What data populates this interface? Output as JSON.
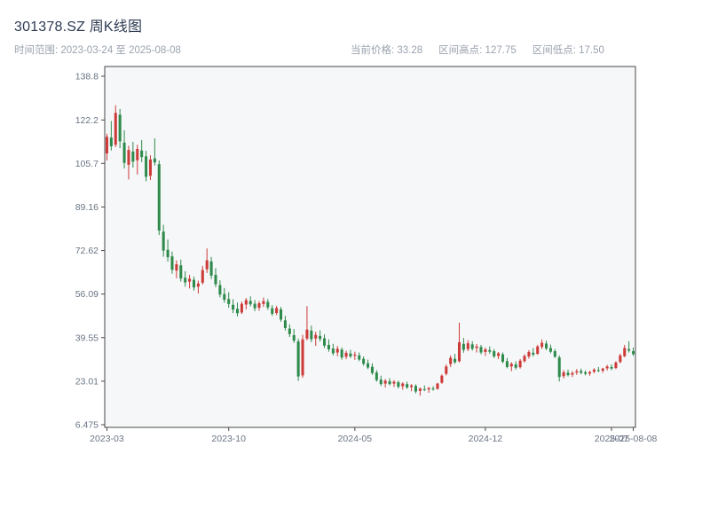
{
  "header": {
    "title": "301378.SZ 周K线图",
    "time_range": "时间范围: 2023-03-24 至 2025-08-08",
    "current_price": "当前价格: 33.28",
    "range_high": "区间高点: 127.75",
    "range_low": "区间低点: 17.50"
  },
  "chart_data": {
    "type": "candlestick",
    "symbol": "301378.SZ",
    "interval": "weekly",
    "title": "301378.SZ 周K线图",
    "current_price": 33.28,
    "range_high": 127.75,
    "range_low": 17.5,
    "date_start": "2023-03-24",
    "date_end": "2025-08-08",
    "ylim": [
      6.475,
      138.8
    ],
    "grid": false,
    "legend": "none",
    "up_color": "#cc3b38",
    "down_color": "#2e8b4c",
    "border_color": "#474747",
    "plot_bg": "#f6f7f9",
    "y_ticks": [
      {
        "label": "6.475",
        "value": 6.475
      },
      {
        "label": "23.01",
        "value": 23.01
      },
      {
        "label": "39.55",
        "value": 39.55
      },
      {
        "label": "56.09",
        "value": 56.09
      },
      {
        "label": "72.62",
        "value": 72.62
      },
      {
        "label": "89.16",
        "value": 89.16
      },
      {
        "label": "105.7",
        "value": 105.7
      },
      {
        "label": "122.2",
        "value": 122.2
      },
      {
        "label": "138.8",
        "value": 138.8
      }
    ],
    "x_ticks": [
      {
        "label": "2023-03",
        "index": 0
      },
      {
        "label": "2023-10",
        "index": 28
      },
      {
        "label": "2024-05",
        "index": 57
      },
      {
        "label": "2024-12",
        "index": 87
      },
      {
        "label": "2025-07",
        "index": 116
      },
      {
        "label": "2025-08-08",
        "index": 121
      }
    ],
    "candles": [
      [
        "2023-03-24",
        109.5,
        117.0,
        106.8,
        115.8
      ],
      [
        "2023-03-31",
        115.5,
        121.8,
        110.6,
        112.2
      ],
      [
        "2023-04-07",
        112.8,
        127.75,
        111.9,
        124.9
      ],
      [
        "2023-04-14",
        124.2,
        126.4,
        111.5,
        114.1
      ],
      [
        "2023-04-21",
        113.6,
        118.3,
        103.8,
        105.9
      ],
      [
        "2023-04-28",
        105.2,
        112.4,
        99.6,
        110.8
      ],
      [
        "2023-05-05",
        110.2,
        113.9,
        104.1,
        106.4
      ],
      [
        "2023-05-12",
        106.9,
        112.8,
        101.5,
        111.2
      ],
      [
        "2023-05-19",
        110.6,
        114.6,
        106.2,
        108.1
      ],
      [
        "2023-05-26",
        108.4,
        110.5,
        98.9,
        100.6
      ],
      [
        "2023-06-02",
        101.0,
        108.8,
        99.4,
        107.2
      ],
      [
        "2023-06-09",
        107.6,
        115.2,
        104.9,
        106.1
      ],
      [
        "2023-06-16",
        105.4,
        106.8,
        78.5,
        80.2
      ],
      [
        "2023-06-23",
        79.8,
        82.4,
        70.3,
        72.6
      ],
      [
        "2023-06-30",
        72.9,
        76.8,
        68.4,
        70.1
      ],
      [
        "2023-07-07",
        70.4,
        72.2,
        63.8,
        65.3
      ],
      [
        "2023-07-14",
        65.0,
        68.9,
        62.1,
        67.4
      ],
      [
        "2023-07-21",
        67.0,
        69.2,
        60.8,
        62.0
      ],
      [
        "2023-07-28",
        62.3,
        64.8,
        58.9,
        60.5
      ],
      [
        "2023-08-04",
        60.8,
        63.4,
        58.2,
        61.9
      ],
      [
        "2023-08-11",
        61.5,
        62.7,
        57.4,
        58.6
      ],
      [
        "2023-08-18",
        58.9,
        61.2,
        56.3,
        60.1
      ],
      [
        "2023-08-25",
        60.4,
        66.8,
        59.7,
        65.2
      ],
      [
        "2023-09-01",
        65.5,
        73.4,
        64.1,
        68.9
      ],
      [
        "2023-09-08",
        68.5,
        70.2,
        61.8,
        63.1
      ],
      [
        "2023-09-15",
        63.4,
        65.9,
        58.7,
        59.8
      ],
      [
        "2023-09-22",
        59.5,
        61.3,
        54.8,
        55.9
      ],
      [
        "2023-09-28",
        56.1,
        58.4,
        52.8,
        53.9
      ],
      [
        "2023-10-13",
        54.2,
        56.8,
        50.9,
        52.3
      ],
      [
        "2023-10-20",
        52.0,
        54.1,
        48.9,
        50.2
      ],
      [
        "2023-10-27",
        50.5,
        52.9,
        47.6,
        48.8
      ],
      [
        "2023-11-03",
        49.1,
        53.2,
        48.5,
        52.4
      ],
      [
        "2023-11-10",
        52.1,
        54.6,
        50.3,
        53.8
      ],
      [
        "2023-11-17",
        53.5,
        55.2,
        51.4,
        52.2
      ],
      [
        "2023-11-24",
        52.4,
        53.8,
        49.6,
        50.7
      ],
      [
        "2023-12-01",
        50.9,
        53.4,
        49.8,
        52.6
      ],
      [
        "2023-12-08",
        52.3,
        54.8,
        51.2,
        53.4
      ],
      [
        "2023-12-15",
        53.1,
        54.2,
        50.1,
        51.0
      ],
      [
        "2023-12-22",
        50.7,
        51.9,
        47.8,
        48.6
      ],
      [
        "2023-12-29",
        48.9,
        51.6,
        48.1,
        50.8
      ],
      [
        "2024-01-05",
        50.3,
        51.2,
        45.6,
        46.4
      ],
      [
        "2024-01-12",
        46.1,
        47.8,
        42.3,
        43.2
      ],
      [
        "2024-01-19",
        43.0,
        44.6,
        39.8,
        40.9
      ],
      [
        "2024-01-26",
        40.5,
        42.8,
        37.6,
        38.4
      ],
      [
        "2024-02-02",
        38.1,
        39.2,
        23.1,
        24.8
      ],
      [
        "2024-02-08",
        25.2,
        40.6,
        24.3,
        38.9
      ],
      [
        "2024-02-23",
        39.2,
        51.5,
        38.5,
        42.6
      ],
      [
        "2024-03-01",
        42.2,
        44.1,
        37.8,
        38.9
      ],
      [
        "2024-03-08",
        39.2,
        41.8,
        36.4,
        40.6
      ],
      [
        "2024-03-15",
        40.2,
        42.3,
        38.1,
        39.0
      ],
      [
        "2024-03-22",
        39.3,
        40.8,
        35.6,
        36.5
      ],
      [
        "2024-03-29",
        36.8,
        38.9,
        34.2,
        35.1
      ],
      [
        "2024-04-03",
        35.4,
        37.2,
        32.8,
        33.6
      ],
      [
        "2024-04-12",
        33.9,
        36.4,
        32.5,
        35.3
      ],
      [
        "2024-04-19",
        35.0,
        35.8,
        31.2,
        32.0
      ],
      [
        "2024-04-26",
        32.3,
        34.6,
        31.4,
        33.8
      ],
      [
        "2024-04-30",
        33.5,
        34.9,
        31.8,
        32.4
      ],
      [
        "2024-05-10",
        32.7,
        34.2,
        31.1,
        33.1
      ],
      [
        "2024-05-17",
        32.8,
        33.9,
        30.6,
        31.2
      ],
      [
        "2024-05-24",
        31.5,
        32.4,
        28.9,
        29.6
      ],
      [
        "2024-05-31",
        29.8,
        31.2,
        27.6,
        28.2
      ],
      [
        "2024-06-07",
        28.5,
        29.8,
        25.4,
        26.1
      ],
      [
        "2024-06-14",
        26.3,
        27.2,
        22.8,
        23.4
      ],
      [
        "2024-06-21",
        23.6,
        25.1,
        21.2,
        21.9
      ],
      [
        "2024-06-28",
        22.1,
        23.8,
        20.6,
        23.2
      ],
      [
        "2024-07-05",
        23.0,
        24.1,
        21.4,
        21.9
      ],
      [
        "2024-07-12",
        22.1,
        23.4,
        20.8,
        22.8
      ],
      [
        "2024-07-19",
        22.6,
        23.2,
        20.3,
        20.9
      ],
      [
        "2024-07-26",
        21.1,
        22.6,
        19.8,
        22.1
      ],
      [
        "2024-08-02",
        21.9,
        22.8,
        20.1,
        20.6
      ],
      [
        "2024-08-09",
        20.8,
        21.9,
        19.2,
        21.4
      ],
      [
        "2024-08-16",
        21.2,
        21.8,
        18.4,
        19.1
      ],
      [
        "2024-08-23",
        19.3,
        20.6,
        17.5,
        20.2
      ],
      [
        "2024-08-30",
        20.0,
        21.4,
        19.2,
        19.8
      ],
      [
        "2024-09-06",
        19.9,
        20.8,
        18.6,
        20.4
      ],
      [
        "2024-09-13",
        20.2,
        21.1,
        19.4,
        19.9
      ],
      [
        "2024-09-20",
        20.1,
        22.4,
        19.8,
        22.1
      ],
      [
        "2024-09-27",
        22.4,
        25.6,
        22.0,
        25.1
      ],
      [
        "2024-09-30",
        25.8,
        29.4,
        25.2,
        28.6
      ],
      [
        "2024-10-11",
        29.5,
        32.8,
        28.4,
        31.9
      ],
      [
        "2024-10-18",
        31.5,
        33.4,
        29.6,
        30.2
      ],
      [
        "2024-10-25",
        30.6,
        45.2,
        30.1,
        37.8
      ],
      [
        "2024-11-01",
        37.2,
        39.4,
        33.8,
        34.9
      ],
      [
        "2024-11-08",
        35.2,
        38.6,
        34.4,
        37.4
      ],
      [
        "2024-11-15",
        37.0,
        38.2,
        34.6,
        35.3
      ],
      [
        "2024-11-22",
        35.6,
        37.1,
        33.9,
        36.2
      ],
      [
        "2024-11-29",
        36.0,
        36.8,
        33.2,
        33.9
      ],
      [
        "2024-12-06",
        34.1,
        35.8,
        32.6,
        35.1
      ],
      [
        "2024-12-13",
        34.8,
        36.2,
        33.4,
        34.2
      ],
      [
        "2024-12-20",
        34.4,
        35.2,
        31.8,
        32.4
      ],
      [
        "2024-12-27",
        32.6,
        34.1,
        31.4,
        33.6
      ],
      [
        "2025-01-03",
        33.2,
        33.9,
        29.8,
        30.4
      ],
      [
        "2025-01-10",
        30.6,
        31.8,
        27.9,
        28.4
      ],
      [
        "2025-01-17",
        28.6,
        30.2,
        26.8,
        29.6
      ],
      [
        "2025-01-24",
        29.4,
        30.6,
        27.4,
        28.1
      ],
      [
        "2025-02-07",
        28.3,
        31.4,
        27.8,
        30.8
      ],
      [
        "2025-02-14",
        30.6,
        33.2,
        30.1,
        32.6
      ],
      [
        "2025-02-21",
        32.4,
        34.8,
        31.6,
        34.1
      ],
      [
        "2025-02-28",
        33.8,
        35.6,
        32.4,
        33.1
      ],
      [
        "2025-03-07",
        33.4,
        36.8,
        33.0,
        36.2
      ],
      [
        "2025-03-14",
        36.0,
        38.9,
        35.2,
        37.6
      ],
      [
        "2025-03-21",
        37.3,
        38.4,
        34.8,
        35.4
      ],
      [
        "2025-03-28",
        35.6,
        36.9,
        33.6,
        34.2
      ],
      [
        "2025-04-03",
        34.4,
        35.2,
        31.8,
        32.3
      ],
      [
        "2025-04-11",
        32.0,
        32.8,
        22.9,
        24.6
      ],
      [
        "2025-04-18",
        24.9,
        27.2,
        24.1,
        26.4
      ],
      [
        "2025-04-25",
        26.2,
        27.4,
        24.8,
        25.3
      ],
      [
        "2025-04-30",
        25.5,
        26.8,
        24.6,
        26.1
      ],
      [
        "2025-05-09",
        26.3,
        27.6,
        25.4,
        26.8
      ],
      [
        "2025-05-16",
        26.9,
        27.8,
        25.6,
        26.2
      ],
      [
        "2025-05-23",
        26.4,
        27.1,
        25.2,
        25.8
      ],
      [
        "2025-05-30",
        25.9,
        26.9,
        25.1,
        26.5
      ],
      [
        "2025-06-06",
        26.6,
        27.9,
        26.0,
        27.4
      ],
      [
        "2025-06-13",
        27.2,
        28.4,
        26.4,
        26.9
      ],
      [
        "2025-06-20",
        27.0,
        28.1,
        26.2,
        27.8
      ],
      [
        "2025-06-27",
        27.9,
        29.2,
        27.1,
        28.6
      ],
      [
        "2025-07-04",
        28.4,
        29.4,
        27.2,
        27.8
      ],
      [
        "2025-07-11",
        28.0,
        30.6,
        27.6,
        30.1
      ],
      [
        "2025-07-18",
        30.3,
        33.4,
        29.8,
        32.8
      ],
      [
        "2025-07-25",
        32.5,
        36.8,
        32.1,
        35.6
      ],
      [
        "2025-08-01",
        35.2,
        38.2,
        33.9,
        34.6
      ],
      [
        "2025-08-08",
        34.4,
        35.8,
        32.6,
        33.28
      ]
    ]
  }
}
